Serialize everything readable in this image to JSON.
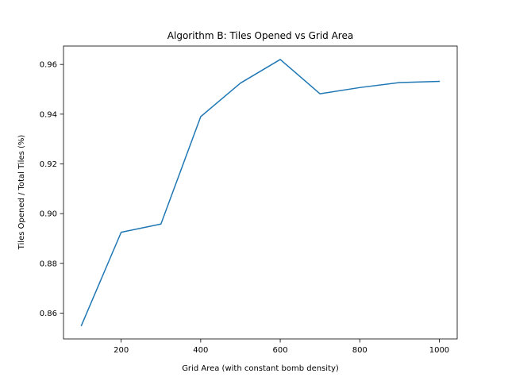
{
  "chart_data": {
    "type": "line",
    "title": "Algorithm B: Tiles Opened vs Grid Area",
    "xlabel": "Grid Area (with constant bomb density)",
    "ylabel": "Tiles Opened / Total Tiles (%)",
    "xlim": [
      55,
      1045
    ],
    "ylim": [
      0.8496,
      0.9674
    ],
    "xticks": [
      200,
      400,
      600,
      800,
      1000
    ],
    "xtick_labels": [
      "200",
      "400",
      "600",
      "800",
      "1000"
    ],
    "yticks": [
      0.86,
      0.88,
      0.9,
      0.92,
      0.94,
      0.96
    ],
    "ytick_labels": [
      "0.86",
      "0.88",
      "0.90",
      "0.92",
      "0.94",
      "0.96"
    ],
    "grid": false,
    "series": [
      {
        "color": "#1f77b4",
        "x": [
          100,
          200,
          300,
          400,
          500,
          600,
          700,
          800,
          900,
          1000
        ],
        "y": [
          0.855,
          0.8925,
          0.8958,
          0.939,
          0.9525,
          0.962,
          0.9482,
          0.9507,
          0.9527,
          0.9532
        ]
      }
    ]
  }
}
